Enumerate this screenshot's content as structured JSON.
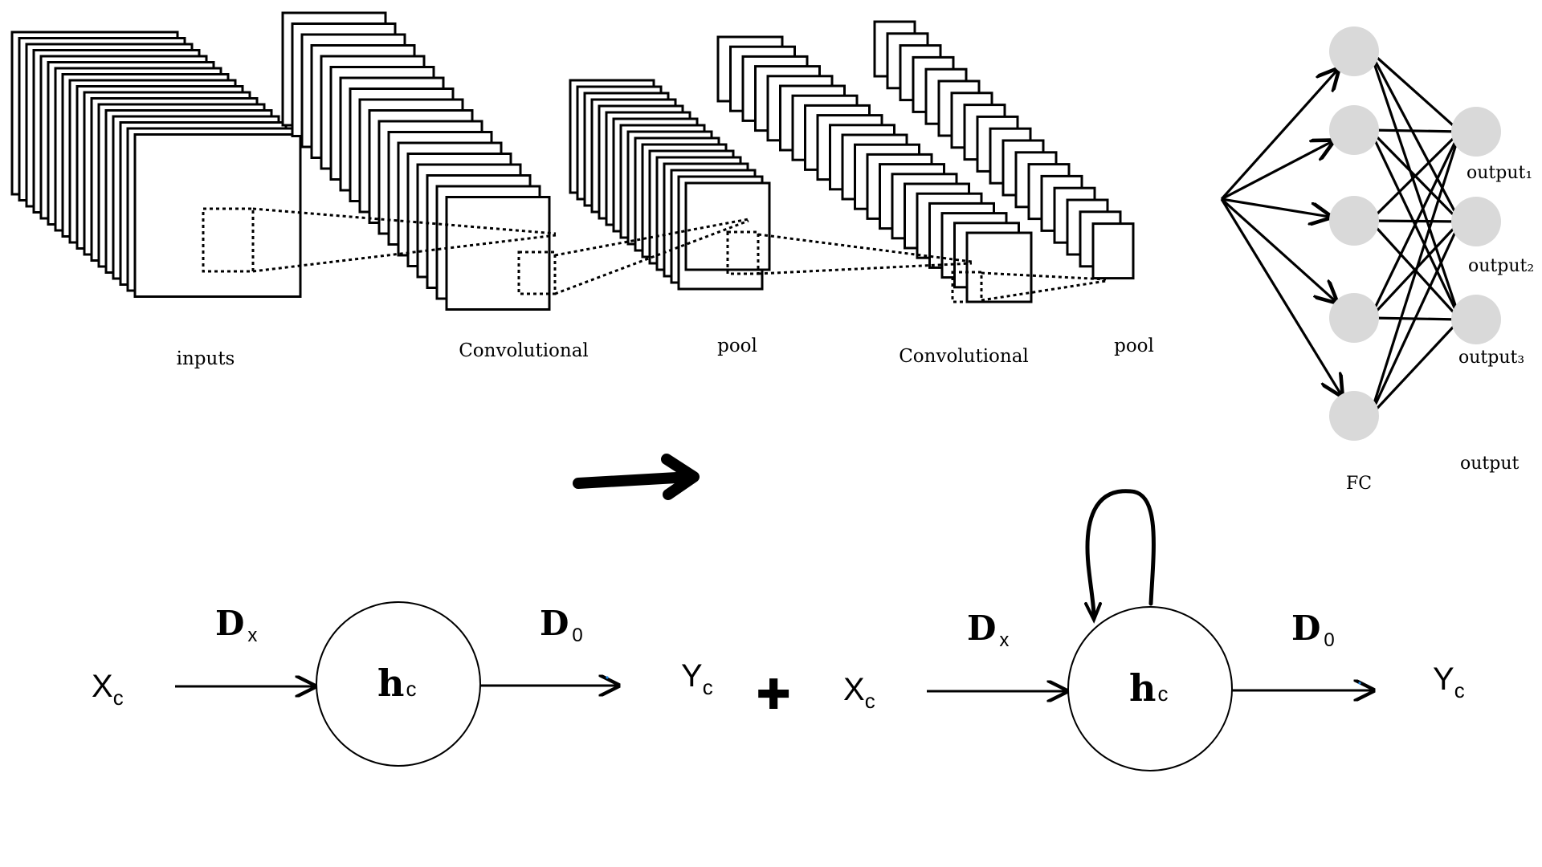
{
  "cnn": {
    "labels": {
      "inputs": "inputs",
      "conv1": "Convolutional",
      "pool1": "pool",
      "conv2": "Convolutional",
      "pool2": "pool",
      "fc": "FC",
      "output": "output",
      "output1": "output₁",
      "output2": "output₂",
      "output3": "output₃"
    },
    "fc_node_count": 5,
    "output_node_count": 3,
    "node_color": "#d9d9d9"
  },
  "formula": {
    "left": {
      "input": {
        "main": "X",
        "sub": "c"
      },
      "weight_in": {
        "main": "D",
        "sub": "x"
      },
      "hidden": {
        "main": "h",
        "sub": "c"
      },
      "weight_out": {
        "main": "D",
        "sub": "0"
      },
      "output": {
        "main": "Y",
        "sub": "c"
      }
    },
    "plus": "✚",
    "right": {
      "input": {
        "main": "X",
        "sub": "c"
      },
      "weight_in": {
        "main": "D",
        "sub": "x"
      },
      "hidden": {
        "main": "h",
        "sub": "c"
      },
      "weight_out": {
        "main": "D",
        "sub": "0"
      },
      "output": {
        "main": "Y",
        "sub": "c"
      }
    }
  },
  "colors": {
    "ink": "#000000",
    "accent_dot": "#1e88e5"
  }
}
